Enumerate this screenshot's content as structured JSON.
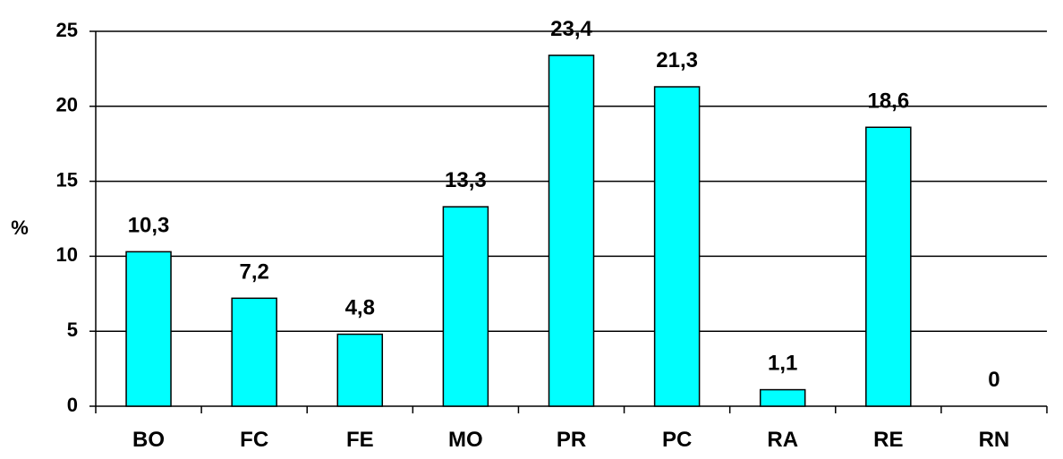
{
  "chart_data": {
    "type": "bar",
    "categories": [
      "BO",
      "FC",
      "FE",
      "MO",
      "PR",
      "PC",
      "RA",
      "RE",
      "RN"
    ],
    "values": [
      10.3,
      7.2,
      4.8,
      13.3,
      23.4,
      21.3,
      1.1,
      18.6,
      0
    ],
    "value_labels": [
      "10,3",
      "7,2",
      "4,8",
      "13,3",
      "23,4",
      "21,3",
      "1,1",
      "18,6",
      "0"
    ],
    "ylabel": "%",
    "ylim": [
      0,
      25
    ],
    "yticks": [
      0,
      5,
      10,
      15,
      20,
      25
    ],
    "ytick_labels": [
      "0",
      "5",
      "10",
      "15",
      "20",
      "25"
    ],
    "grid": true,
    "bar_color": "#00FFFF",
    "bar_edge_color": "#000000"
  }
}
